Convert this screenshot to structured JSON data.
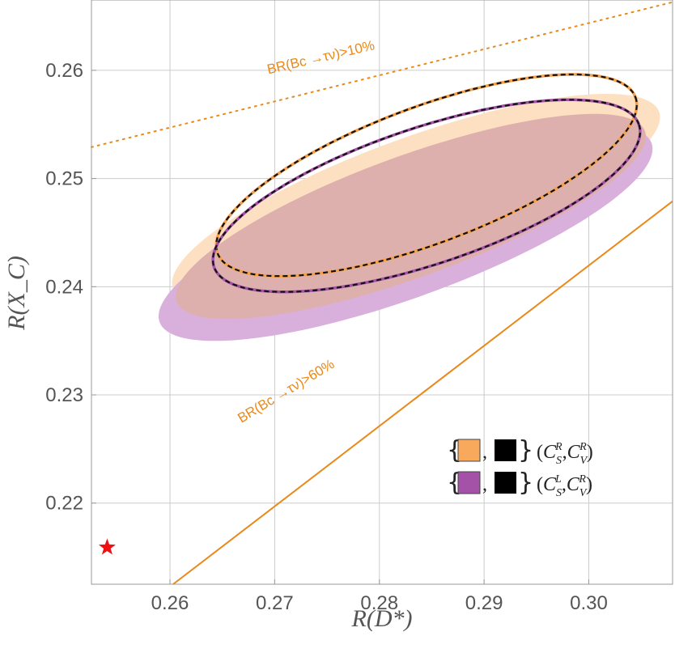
{
  "chart_data": {
    "type": "scatter",
    "title": "",
    "xlabel": "R(D*)",
    "ylabel": "R(X_C)",
    "xlim": [
      0.2525,
      0.308
    ],
    "ylim": [
      0.2125,
      0.2665
    ],
    "grid": true,
    "xticks": [
      0.26,
      0.27,
      0.28,
      0.29,
      0.3
    ],
    "yticks": [
      0.22,
      0.23,
      0.24,
      0.25,
      0.26
    ],
    "x_tick_labels": [
      "0.26",
      "0.27",
      "0.28",
      "0.29",
      "0.30"
    ],
    "y_tick_labels": [
      "0.22",
      "0.23",
      "0.24",
      "0.25",
      "0.26"
    ],
    "regions": [
      {
        "name": "CS_R-CV_R allowed region",
        "color": "#fde0c2",
        "center": [
          0.2835,
          0.248
        ],
        "semi_axes": [
          0.0247,
          0.0058
        ],
        "angle_deg": -20
      },
      {
        "name": "CS_L-CV_R allowed region",
        "color": "#d9b0dc",
        "center": [
          0.2825,
          0.245
        ],
        "semi_axes": [
          0.025,
          0.006
        ],
        "angle_deg": -20
      },
      {
        "name": "overlap region",
        "color": "#ddb0ad",
        "center": [
          0.283,
          0.2465
        ],
        "semi_axes": [
          0.0238,
          0.0056
        ],
        "angle_deg": -20
      }
    ],
    "contours": [
      {
        "name": "(C_S^R, C_V^R) contour",
        "color": "#f5a04a",
        "dash_color": "#111111",
        "center": [
          0.2845,
          0.2503
        ],
        "semi_axes": [
          0.0213,
          0.0063
        ],
        "angle_deg": -20.5
      },
      {
        "name": "(C_S^L, C_V^R) contour",
        "color": "#a452a8",
        "dash_color": "#111111",
        "center": [
          0.2845,
          0.2484
        ],
        "semi_axes": [
          0.0214,
          0.0063
        ],
        "angle_deg": -18.5
      }
    ],
    "lines": [
      {
        "name": "BR10",
        "style": "dotted",
        "color": "#e8891a",
        "points": [
          [
            0.2525,
            0.2529
          ],
          [
            0.308,
            0.2663
          ]
        ]
      },
      {
        "name": "BR60",
        "style": "solid",
        "color": "#e8891a",
        "points": [
          [
            0.2603,
            0.2125
          ],
          [
            0.308,
            0.2479
          ]
        ]
      }
    ],
    "annotations": [
      {
        "id": "br10",
        "text": "BR(Bc →τν)>10%",
        "x": 0.2745,
        "y": 0.2608,
        "angle": -13
      },
      {
        "id": "br60",
        "text": "BR(Bc →τν)>60%",
        "x": 0.2713,
        "y": 0.23,
        "angle": -31
      }
    ],
    "sm_point": {
      "name": "SM prediction",
      "marker": "star",
      "color": "#ee1111",
      "x": 0.254,
      "y": 0.2159
    },
    "legend": {
      "position": "lower-right",
      "entries": [
        {
          "swatch_colors": [
            "#f8a95c",
            "#000000"
          ],
          "label": "(C_S^R, C_V^R)",
          "s_sup": "R",
          "v_sup": "R"
        },
        {
          "swatch_colors": [
            "#a452a8",
            "#000000"
          ],
          "label": "(C_S^L, C_V^R)",
          "s_sup": "L",
          "v_sup": "R"
        }
      ]
    }
  }
}
